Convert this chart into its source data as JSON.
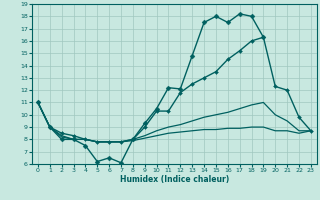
{
  "xlabel": "Humidex (Indice chaleur)",
  "xlim": [
    -0.5,
    23.5
  ],
  "ylim": [
    6,
    19
  ],
  "yticks": [
    6,
    7,
    8,
    9,
    10,
    11,
    12,
    13,
    14,
    15,
    16,
    17,
    18,
    19
  ],
  "xticks": [
    0,
    1,
    2,
    3,
    4,
    5,
    6,
    7,
    8,
    9,
    10,
    11,
    12,
    13,
    14,
    15,
    16,
    17,
    18,
    19,
    20,
    21,
    22,
    23
  ],
  "bg_color": "#c8e8e0",
  "line_color": "#006060",
  "grid_color": "#a0c8c0",
  "series": [
    {
      "x": [
        0,
        1,
        2,
        3,
        4,
        5,
        6,
        7,
        8,
        9,
        10,
        11,
        12,
        13,
        14,
        15,
        16,
        17,
        18,
        19,
        20,
        21,
        22,
        23
      ],
      "y": [
        11,
        9,
        8,
        8,
        7.5,
        6.2,
        6.5,
        6.1,
        8.0,
        9.3,
        10.5,
        12.2,
        12.1,
        14.8,
        17.5,
        18.0,
        17.5,
        18.2,
        18.0,
        16.3,
        null,
        null,
        null,
        null
      ],
      "marker": "D",
      "markersize": 2.5,
      "linewidth": 1.0
    },
    {
      "x": [
        0,
        1,
        2,
        3,
        4,
        5,
        6,
        7,
        8,
        9,
        10,
        11,
        12,
        13,
        14,
        15,
        16,
        17,
        18,
        19,
        20,
        21,
        22,
        23
      ],
      "y": [
        11,
        9,
        8.5,
        8.3,
        8.0,
        7.8,
        7.8,
        7.8,
        8.0,
        9.0,
        10.3,
        10.3,
        11.8,
        12.5,
        13.0,
        13.5,
        14.5,
        15.2,
        16.0,
        16.3,
        12.3,
        12.0,
        9.8,
        8.7
      ],
      "marker": "D",
      "markersize": 2.0,
      "linewidth": 1.0
    },
    {
      "x": [
        0,
        1,
        2,
        3,
        4,
        5,
        6,
        7,
        8,
        9,
        10,
        11,
        12,
        13,
        14,
        15,
        16,
        17,
        18,
        19,
        20,
        21,
        22,
        23
      ],
      "y": [
        11,
        9.0,
        8.3,
        8.0,
        8.0,
        7.8,
        7.8,
        7.8,
        8.0,
        8.3,
        8.7,
        9.0,
        9.2,
        9.5,
        9.8,
        10.0,
        10.2,
        10.5,
        10.8,
        11.0,
        10.0,
        9.5,
        8.7,
        8.7
      ],
      "marker": null,
      "linewidth": 0.9
    },
    {
      "x": [
        0,
        1,
        2,
        3,
        4,
        5,
        6,
        7,
        8,
        9,
        10,
        11,
        12,
        13,
        14,
        15,
        16,
        17,
        18,
        19,
        20,
        21,
        22,
        23
      ],
      "y": [
        11,
        9.0,
        8.2,
        8.0,
        8.0,
        7.8,
        7.8,
        7.8,
        7.9,
        8.1,
        8.3,
        8.5,
        8.6,
        8.7,
        8.8,
        8.8,
        8.9,
        8.9,
        9.0,
        9.0,
        8.7,
        8.7,
        8.5,
        8.7
      ],
      "marker": null,
      "linewidth": 0.9
    }
  ]
}
